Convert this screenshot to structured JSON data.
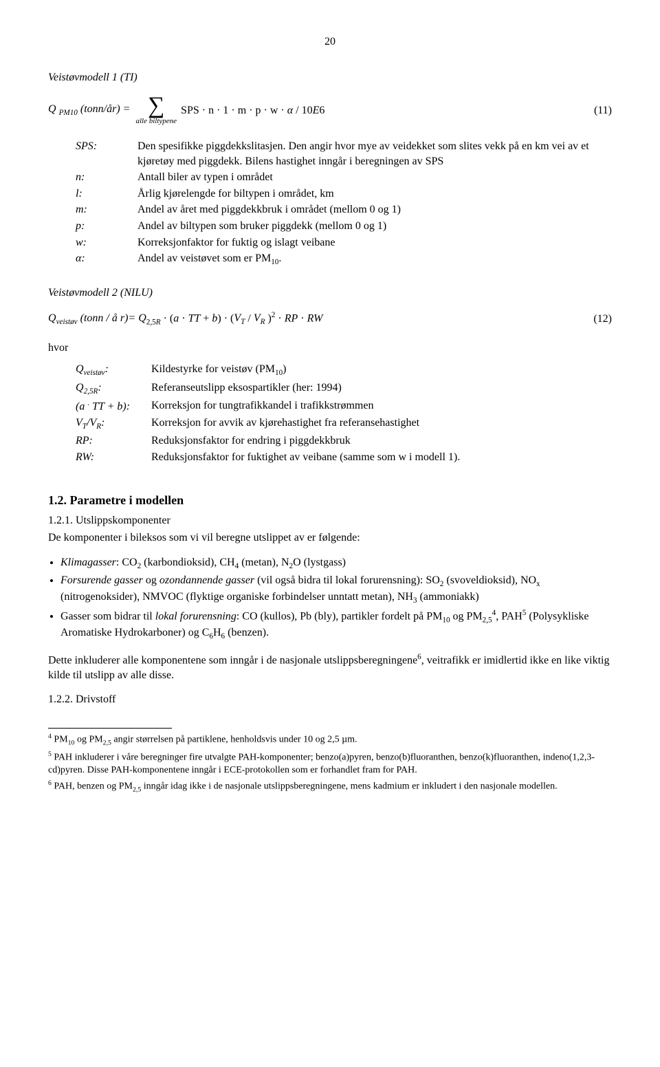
{
  "page_number": "20",
  "model1": {
    "title": "Veistøvmodell 1 (TI)",
    "eq_lhs_html": "Q <sub>PM10</sub> (tonn/år) =",
    "sigma_sub": "alle biltypene",
    "eq_content_html": "SPS · n · 1 · m · p · w · <span class=\"ital\">α</span> / 10<span class=\"ital\">E</span>6",
    "eq_num": "(11)",
    "defs": [
      {
        "sym": "SPS:",
        "desc_html": "Den spesifikke piggdekkslitasjen. Den angir hvor mye av veidekket som slites vekk på en km vei av et kjøretøy med piggdekk. Bilens hastighet inngår i beregningen av SPS"
      },
      {
        "sym": "n:",
        "desc_html": "Antall biler av typen i området"
      },
      {
        "sym": "l:",
        "desc_html": "Årlig kjørelengde for biltypen i området, km"
      },
      {
        "sym": "m:",
        "desc_html": "Andel av året med piggdekkbruk i området (mellom 0 og 1)"
      },
      {
        "sym": "p:",
        "desc_html": "Andel av biltypen som bruker piggdekk (mellom 0 og 1)"
      },
      {
        "sym": "w:",
        "desc_html": "Korreksjonfaktor for fuktig og islagt veibane"
      },
      {
        "sym": "α:",
        "desc_html": "Andel av veistøvet som er PM<sub>10</sub>."
      }
    ]
  },
  "model2": {
    "title": "Veistøvmodell 2 (NILU)",
    "eq_html": "<span class=\"ital\">Q<sub>veistøv</sub> (tonn / å r)= Q</span><sub>2,5<span class=\"ital\">R</span></sub> · (<span class=\"ital\">a</span> · <span class=\"ital\">TT</span> + <span class=\"ital\">b</span>) · (<span class=\"ital\">V<sub>T</sub></span> / <span class=\"ital\">V<sub>R</sub></span> )<sup>2</sup> · <span class=\"ital\">RP</span> · <span class=\"ital\">RW</span>",
    "eq_num": "(12)",
    "hvor": "hvor",
    "defs": [
      {
        "sym_html": "Q<sub>veistøv</sub>:",
        "desc_html": "Kildestyrke for veistøv (PM<sub>10</sub>)"
      },
      {
        "sym_html": "Q<sub>2,5R</sub>:",
        "desc_html": "Referanseutslipp eksospartikler (her: 1994)"
      },
      {
        "sym_html": "(a <sup>.</sup> TT + b):",
        "desc_html": "Korreksjon for tungtrafikkandel i trafikkstrømmen"
      },
      {
        "sym_html": "V<sub>T</sub>/V<sub>R</sub>:",
        "desc_html": "Korreksjon for avvik av kjørehastighet fra referansehastighet"
      },
      {
        "sym_html": "RP:",
        "desc_html": "Reduksjonsfaktor for endring i piggdekkbruk"
      },
      {
        "sym_html": "RW:",
        "desc_html": "Reduksjonsfaktor for fuktighet av veibane (samme som w i modell 1)."
      }
    ]
  },
  "params": {
    "heading": "1.2. Parametre i modellen",
    "sub1_title": "1.2.1. Utslippskomponenter",
    "sub1_intro": "De komponenter i bileksos som vi vil beregne utslippet av er følgende:",
    "bullets": [
      "<span class=\"ital\">Klimagasser</span>: CO<sub>2</sub> (karbondioksid), CH<sub>4</sub> (metan), N<sub>2</sub>O (lystgass)",
      "<span class=\"ital\">Forsurende gasser</span> og <span class=\"ital\">ozondannende gasser</span> (vil også bidra til lokal forurensning): SO<sub>2</sub> (svoveldioksid), NO<sub>x</sub> (nitrogenoksider), NMVOC (flyktige organiske forbindelser unntatt metan), NH<sub>3</sub> (ammoniakk)",
      "Gasser som bidrar til <span class=\"ital\">lokal forurensning</span>: CO (kullos), Pb (bly), partikler fordelt på PM<sub>10</sub> og PM<sub>2,5</sub><sup>4</sup>, PAH<sup>5</sup> (Polysykliske Aromatiske Hydrokarboner) og C<sub>6</sub>H<sub>6</sub> (benzen)."
    ],
    "para_after": "Dette inkluderer alle komponentene som inngår i de nasjonale utslippsberegningene<sup>6</sup>, veitrafikk er imidlertid ikke en like viktig kilde til utslipp av alle disse.",
    "sub2_title": "1.2.2. Drivstoff"
  },
  "footnotes": [
    "<sup>4</sup> PM<sub>10</sub> og PM<sub>2,5</sub> angir størrelsen på partiklene, henholdsvis under 10 og 2,5 µm.",
    "<sup>5</sup> PAH inkluderer i våre beregninger fire utvalgte PAH-komponenter; benzo(a)pyren, benzo(b)fluoranthen, benzo(k)fluoranthen, indeno(1,2,3-cd)pyren. Disse PAH-komponentene inngår i ECE-protokollen som er forhandlet fram for PAH.",
    "<sup>6</sup> PAH, benzen og PM<sub>2,5</sub> inngår idag ikke i de nasjonale utslippsberegningene, mens kadmium er inkludert i den nasjonale modellen."
  ]
}
